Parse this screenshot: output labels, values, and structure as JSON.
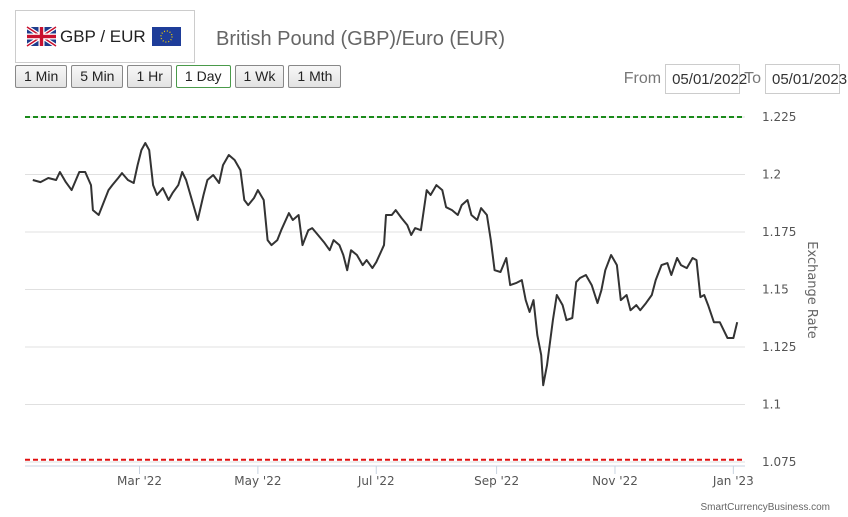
{
  "header": {
    "pair_label": "GBP / EUR",
    "title": "British Pound (GBP)/Euro (EUR)"
  },
  "ranges": [
    "1 Min",
    "5 Min",
    "1 Hr",
    "1 Day",
    "1 Wk",
    "1 Mth"
  ],
  "active_range": "1 Day",
  "date_range": {
    "from_label": "From",
    "from_value": "05/01/2022",
    "to_label": "To",
    "to_value": "05/01/2023"
  },
  "watermark": "SmartCurrencyBusiness.com",
  "colors": {
    "line": "#333333",
    "high": "#1a8a1a",
    "low": "#e01010",
    "grid": "#e0e0e0"
  },
  "chart_data": {
    "type": "line",
    "title": "British Pound (GBP)/Euro (EUR)",
    "ylabel": "Exchange Rate",
    "x_unit": "days since 2022-01-05",
    "xlim": [
      -4,
      367
    ],
    "ylim": [
      1.075,
      1.225
    ],
    "grid": true,
    "y_ticks": [
      1.075,
      1.1,
      1.125,
      1.15,
      1.175,
      1.2,
      1.225
    ],
    "y_tick_labels": [
      "1.075",
      "1.1",
      "1.125",
      "1.15",
      "1.175",
      "1.2",
      "1.225"
    ],
    "x_ticks": [
      55,
      116,
      177,
      239,
      300,
      361
    ],
    "x_tick_labels": [
      "Mar '22",
      "May '22",
      "Jul '22",
      "Sep '22",
      "Nov '22",
      "Jan '23"
    ],
    "high_line": 1.225,
    "low_line": 1.076,
    "x": [
      0,
      4,
      8,
      12,
      14,
      17,
      20,
      24,
      27,
      30,
      31,
      34,
      36,
      39,
      41,
      44,
      46,
      49,
      52,
      54,
      56,
      58,
      60,
      62,
      64,
      67,
      70,
      72,
      75,
      77,
      79,
      82,
      85,
      88,
      90,
      93,
      96,
      98,
      101,
      104,
      107,
      109,
      111,
      114,
      116,
      119,
      121,
      123,
      126,
      128,
      132,
      134,
      137,
      139,
      142,
      144,
      147,
      150,
      153,
      155,
      158,
      160,
      162,
      164,
      167,
      170,
      172,
      175,
      177,
      181,
      182,
      185,
      187,
      190,
      193,
      195,
      197,
      200,
      203,
      205,
      208,
      211,
      213,
      216,
      219,
      221,
      224,
      226,
      229,
      231,
      234,
      236,
      238,
      241,
      244,
      246,
      249,
      252,
      254,
      256,
      258,
      260,
      262,
      263,
      265,
      268,
      270,
      273,
      275,
      278,
      280,
      282,
      285,
      288,
      291,
      293,
      295,
      298,
      301,
      303,
      306,
      308,
      311,
      313,
      316,
      319,
      321,
      324,
      327,
      329,
      332,
      334,
      337,
      340,
      342,
      344,
      346,
      348,
      351,
      354,
      356,
      358,
      361,
      363
    ],
    "y": [
      1.1976,
      1.1967,
      1.1985,
      1.1976,
      1.2011,
      1.1967,
      1.1932,
      1.2011,
      1.2011,
      1.1954,
      1.1845,
      1.1824,
      1.1867,
      1.1932,
      1.1954,
      1.1985,
      1.2006,
      1.1976,
      1.1963,
      1.2041,
      1.2106,
      1.2137,
      1.2106,
      1.1954,
      1.1911,
      1.1941,
      1.1889,
      1.1919,
      1.1954,
      1.2011,
      1.1976,
      1.1889,
      1.1802,
      1.1911,
      1.1976,
      1.1998,
      1.1963,
      1.2041,
      1.2085,
      1.2063,
      1.2019,
      1.1889,
      1.1867,
      1.1898,
      1.1932,
      1.1889,
      1.1715,
      1.1693,
      1.1715,
      1.1758,
      1.1832,
      1.1802,
      1.1824,
      1.1693,
      1.1758,
      1.1767,
      1.1737,
      1.1706,
      1.1671,
      1.1715,
      1.1693,
      1.165,
      1.1584,
      1.1671,
      1.165,
      1.1606,
      1.1628,
      1.1593,
      1.1619,
      1.1693,
      1.1824,
      1.1824,
      1.1845,
      1.1811,
      1.178,
      1.1737,
      1.1767,
      1.1758,
      1.1932,
      1.1911,
      1.1954,
      1.1932,
      1.1858,
      1.1845,
      1.1824,
      1.1867,
      1.1889,
      1.1824,
      1.1802,
      1.1854,
      1.1824,
      1.1715,
      1.1584,
      1.1576,
      1.1637,
      1.1519,
      1.1528,
      1.1541,
      1.1454,
      1.1402,
      1.1454,
      1.1302,
      1.1215,
      1.1084,
      1.1171,
      1.1367,
      1.1476,
      1.1432,
      1.1367,
      1.1376,
      1.1532,
      1.155,
      1.1563,
      1.1519,
      1.1441,
      1.1497,
      1.1584,
      1.165,
      1.1606,
      1.1454,
      1.1476,
      1.141,
      1.1432,
      1.141,
      1.1441,
      1.1476,
      1.1541,
      1.1606,
      1.1615,
      1.1563,
      1.1637,
      1.1606,
      1.1593,
      1.1637,
      1.1628,
      1.1467,
      1.1476,
      1.1432,
      1.1358,
      1.1358,
      1.1323,
      1.1289,
      1.1289,
      1.1358
    ]
  }
}
